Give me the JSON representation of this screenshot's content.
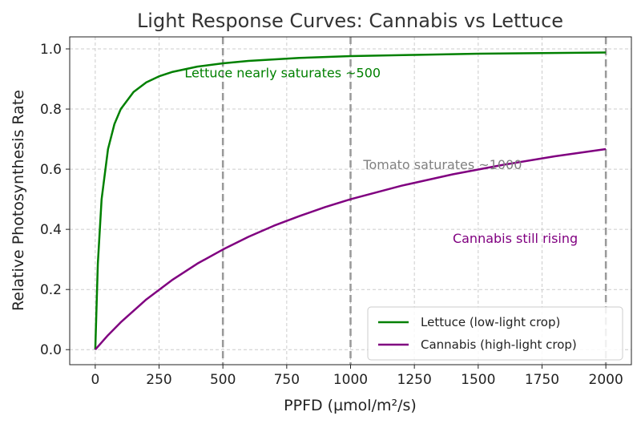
{
  "chart_data": {
    "type": "line",
    "title": "Light Response Curves: Cannabis vs Lettuce",
    "xlabel": "PPFD (µmol/m²/s)",
    "ylabel": "Relative Photosynthesis Rate",
    "xlim": [
      -100,
      2100
    ],
    "ylim": [
      -0.05,
      1.04
    ],
    "x_ticks": [
      0,
      250,
      500,
      750,
      1000,
      1250,
      1500,
      1750,
      2000
    ],
    "y_ticks": [
      0.0,
      0.2,
      0.4,
      0.6,
      0.8,
      1.0
    ],
    "x_tick_labels": [
      "0",
      "250",
      "500",
      "750",
      "1000",
      "1250",
      "1500",
      "1750",
      "2000"
    ],
    "y_tick_labels": [
      "0.0",
      "0.2",
      "0.4",
      "0.6",
      "0.8",
      "1.0"
    ],
    "grid": true,
    "legend_position": "lower-right",
    "series": [
      {
        "name": "Lettuce (low-light crop)",
        "color": "#008000",
        "x": [
          0,
          10,
          25,
          50,
          75,
          100,
          150,
          200,
          250,
          300,
          400,
          500,
          600,
          800,
          1000,
          1250,
          1500,
          1750,
          2000
        ],
        "y": [
          0.0,
          0.286,
          0.5,
          0.667,
          0.75,
          0.8,
          0.857,
          0.889,
          0.909,
          0.923,
          0.941,
          0.952,
          0.96,
          0.97,
          0.976,
          0.98,
          0.984,
          0.986,
          0.988
        ]
      },
      {
        "name": "Cannabis (high-light crop)",
        "color": "#800080",
        "x": [
          0,
          50,
          100,
          200,
          300,
          400,
          500,
          600,
          700,
          800,
          900,
          1000,
          1200,
          1400,
          1600,
          1800,
          2000
        ],
        "y": [
          0.0,
          0.048,
          0.091,
          0.167,
          0.231,
          0.286,
          0.333,
          0.375,
          0.412,
          0.444,
          0.474,
          0.5,
          0.545,
          0.583,
          0.615,
          0.643,
          0.667
        ]
      }
    ],
    "vertical_lines": [
      500,
      1000,
      2000
    ],
    "annotations": [
      {
        "text": "Lettuce nearly saturates ~500",
        "x": 350,
        "y": 0.905,
        "color": "#008000"
      },
      {
        "text": "Tomato saturates ~1000",
        "x": 1050,
        "y": 0.6,
        "color": "#808080"
      },
      {
        "text": "Cannabis still rising",
        "x": 1400,
        "y": 0.355,
        "color": "#800080"
      }
    ]
  }
}
